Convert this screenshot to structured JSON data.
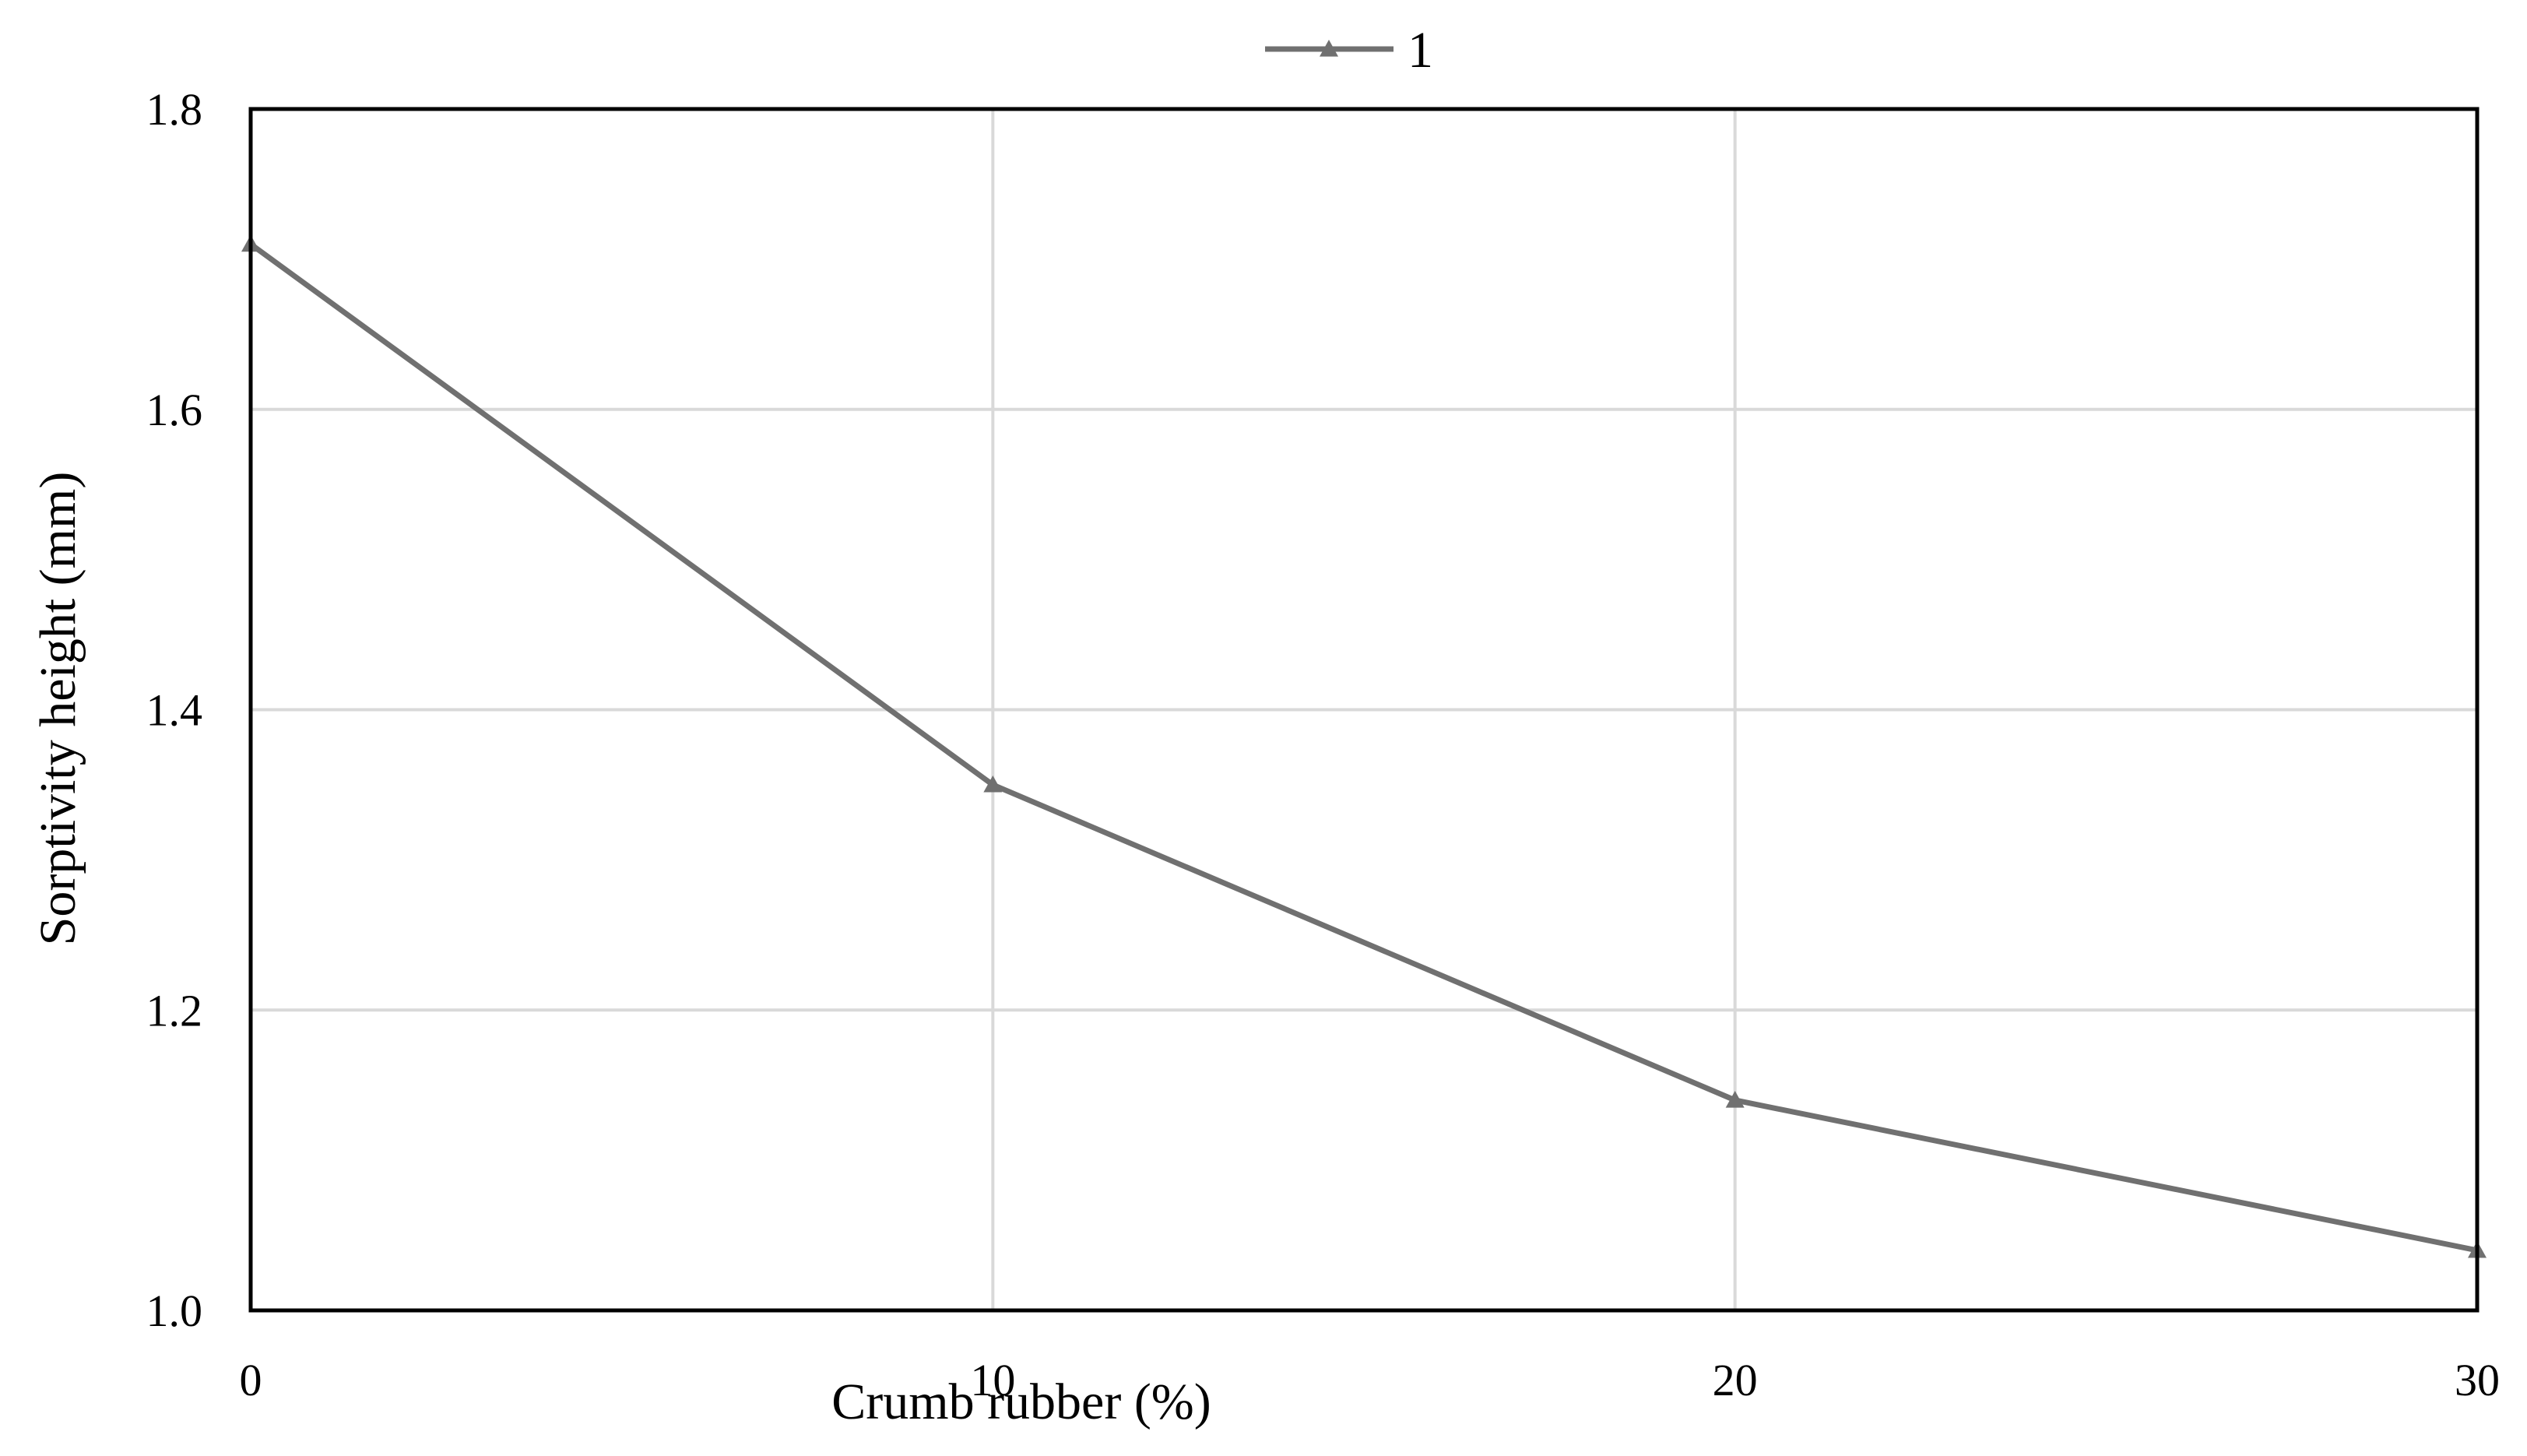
{
  "chart_data": {
    "type": "line",
    "title": "",
    "xlabel": "Crumb rubber (%)",
    "ylabel": "Sorptivity height (mm)",
    "x": [
      0,
      10,
      20,
      30
    ],
    "x_tick_labels": [
      "0",
      "10",
      "20",
      "30"
    ],
    "y_tick_labels": [
      "1.0",
      "1.2",
      "1.4",
      "1.6",
      "1.8"
    ],
    "xlim": [
      0,
      30
    ],
    "ylim": [
      1.0,
      1.8
    ],
    "grid": true,
    "legend_position": "top-center",
    "series": [
      {
        "name": "1",
        "values": [
          1.71,
          1.35,
          1.14,
          1.04
        ],
        "color": "#707070",
        "marker": "triangle"
      }
    ],
    "colors": {
      "gridline": "#d9d9d9",
      "frame": "#000000"
    }
  }
}
